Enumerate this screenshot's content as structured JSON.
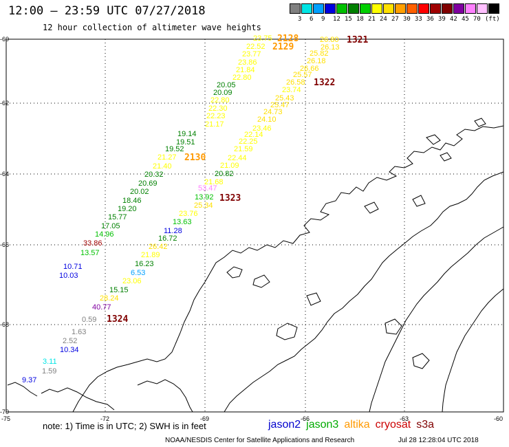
{
  "header": {
    "title": "12:00 – 23:59 UTC 07/27/2018",
    "subtitle": "12 hour collection of altimeter wave heights"
  },
  "colorbar": {
    "colors": [
      "#808080",
      "#00e5e5",
      "#00a0ff",
      "#0000e0",
      "#00c000",
      "#008000",
      "#00d000",
      "#ffff00",
      "#ffe000",
      "#ffa000",
      "#ff6000",
      "#ff0000",
      "#a00000",
      "#800000",
      "#8000a0",
      "#ff80ff",
      "#ffc0ff",
      "#000000"
    ],
    "labels": [
      "3",
      "6",
      "9",
      "12",
      "15",
      "18",
      "21",
      "24",
      "27",
      "30",
      "33",
      "36",
      "39",
      "42",
      "45",
      "70",
      "(ft)"
    ]
  },
  "axes": {
    "lat_labels": [
      "-60",
      "-62",
      "-64",
      "-66",
      "-68",
      "-70"
    ],
    "lon_labels": [
      "-75",
      "-72",
      "-69",
      "-66",
      "-63",
      "-60"
    ]
  },
  "passes": [
    {
      "id": "2128",
      "color": "#ff9900"
    },
    {
      "id": "2129",
      "color": "#ff9900"
    },
    {
      "id": "2130",
      "color": "#ff9900"
    },
    {
      "id": "1321",
      "color": "#800000"
    },
    {
      "id": "1322",
      "color": "#800000"
    },
    {
      "id": "1323",
      "color": "#800000"
    },
    {
      "id": "1324",
      "color": "#800000"
    }
  ],
  "observations": [
    {
      "v": "23.75",
      "c": "#ffff00"
    },
    {
      "v": "22.52",
      "c": "#ffff00"
    },
    {
      "v": "23.77",
      "c": "#ffff00"
    },
    {
      "v": "23.86",
      "c": "#ffff00"
    },
    {
      "v": "21.84",
      "c": "#ffff00"
    },
    {
      "v": "22.80",
      "c": "#ffff00"
    },
    {
      "v": "20.05",
      "c": "#008000"
    },
    {
      "v": "20.09",
      "c": "#008000"
    },
    {
      "v": "22.80",
      "c": "#ffff00"
    },
    {
      "v": "22.30",
      "c": "#ffff00"
    },
    {
      "v": "22.23",
      "c": "#ffff00"
    },
    {
      "v": "21.17",
      "c": "#ffff00"
    },
    {
      "v": "19.14",
      "c": "#008000"
    },
    {
      "v": "19.51",
      "c": "#008000"
    },
    {
      "v": "19.52",
      "c": "#008000"
    },
    {
      "v": "21.27",
      "c": "#ffff00"
    },
    {
      "v": "21.40",
      "c": "#ffff00"
    },
    {
      "v": "20.32",
      "c": "#008000"
    },
    {
      "v": "20.69",
      "c": "#008000"
    },
    {
      "v": "20.02",
      "c": "#008000"
    },
    {
      "v": "18.46",
      "c": "#008000"
    },
    {
      "v": "19.20",
      "c": "#008000"
    },
    {
      "v": "15.77",
      "c": "#008000"
    },
    {
      "v": "17.05",
      "c": "#008000"
    },
    {
      "v": "14.96",
      "c": "#00c000"
    },
    {
      "v": "33.86",
      "c": "#a00000"
    },
    {
      "v": "13.57",
      "c": "#00c000"
    },
    {
      "v": "10.71",
      "c": "#0000e0"
    },
    {
      "v": "10.03",
      "c": "#0000e0"
    },
    {
      "v": "0.59",
      "c": "#808080"
    },
    {
      "v": "1.63",
      "c": "#808080"
    },
    {
      "v": "2.52",
      "c": "#808080"
    },
    {
      "v": "10.34",
      "c": "#0000e0"
    },
    {
      "v": "3.11",
      "c": "#00e5e5"
    },
    {
      "v": "1.59",
      "c": "#808080"
    },
    {
      "v": "9.37",
      "c": "#0000e0"
    },
    {
      "v": "26.80",
      "c": "#ffe000"
    },
    {
      "v": "26.13",
      "c": "#ffe000"
    },
    {
      "v": "25.82",
      "c": "#ffe000"
    },
    {
      "v": "26.18",
      "c": "#ffe000"
    },
    {
      "v": "26.66",
      "c": "#ffe000"
    },
    {
      "v": "25.57",
      "c": "#ffe000"
    },
    {
      "v": "26.58",
      "c": "#ffe000"
    },
    {
      "v": "23.74",
      "c": "#ffff00"
    },
    {
      "v": "25.43",
      "c": "#ffe000"
    },
    {
      "v": "25.47",
      "c": "#ffe000"
    },
    {
      "v": "24.73",
      "c": "#ffe000"
    },
    {
      "v": "24.10",
      "c": "#ffe000"
    },
    {
      "v": "23.46",
      "c": "#ffff00"
    },
    {
      "v": "22.14",
      "c": "#ffff00"
    },
    {
      "v": "22.25",
      "c": "#ffff00"
    },
    {
      "v": "21.59",
      "c": "#ffff00"
    },
    {
      "v": "22.44",
      "c": "#ffff00"
    },
    {
      "v": "21.09",
      "c": "#ffff00"
    },
    {
      "v": "20.82",
      "c": "#008000"
    },
    {
      "v": "21.68",
      "c": "#ffff00"
    },
    {
      "v": "53.47",
      "c": "#ff80ff"
    },
    {
      "v": "13.92",
      "c": "#00c000"
    },
    {
      "v": "25.34",
      "c": "#ffe000"
    },
    {
      "v": "23.76",
      "c": "#ffff00"
    },
    {
      "v": "13.63",
      "c": "#00c000"
    },
    {
      "v": "11.28",
      "c": "#0000e0"
    },
    {
      "v": "16.72",
      "c": "#008000"
    },
    {
      "v": "26.42",
      "c": "#ffe000"
    },
    {
      "v": "21.89",
      "c": "#ffff00"
    },
    {
      "v": "16.23",
      "c": "#008000"
    },
    {
      "v": "6.53",
      "c": "#00a0ff"
    },
    {
      "v": "23.06",
      "c": "#ffff00"
    },
    {
      "v": "15.15",
      "c": "#008000"
    },
    {
      "v": "28.24",
      "c": "#ffe000"
    },
    {
      "v": "40.77",
      "c": "#8000a0"
    }
  ],
  "footer": {
    "note": "note:  1) Time is in UTC;  2) SWH is in feet",
    "satellites": [
      {
        "name": "jason2",
        "color": "#0000cc"
      },
      {
        "name": "jason3",
        "color": "#00aa00"
      },
      {
        "name": "altika",
        "color": "#ff9900"
      },
      {
        "name": "cryosat",
        "color": "#cc0000"
      },
      {
        "name": "s3a",
        "color": "#800000"
      }
    ],
    "credit": "NOAA/NESDIS Center for Satellite Applications and Research",
    "timestamp": "Jul 28 12:28:04 UTC 2018"
  }
}
